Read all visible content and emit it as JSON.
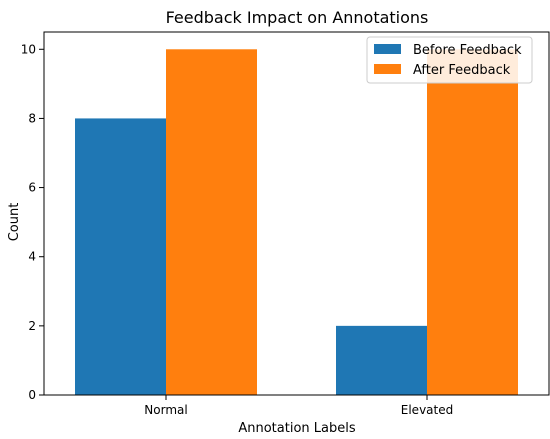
{
  "chart_data": {
    "type": "bar",
    "title": "Feedback Impact on Annotations",
    "xlabel": "Annotation Labels",
    "ylabel": "Count",
    "categories": [
      "Normal",
      "Elevated"
    ],
    "series": [
      {
        "name": "Before Feedback",
        "values": [
          8,
          2
        ],
        "color": "#1f77b4"
      },
      {
        "name": "After Feedback",
        "values": [
          10,
          10
        ],
        "color": "#ff7f0e"
      }
    ],
    "ylim": [
      0,
      10.5
    ],
    "yticks": [
      0,
      2,
      4,
      6,
      8,
      10
    ],
    "grid": false,
    "legend_position": "top-right"
  }
}
